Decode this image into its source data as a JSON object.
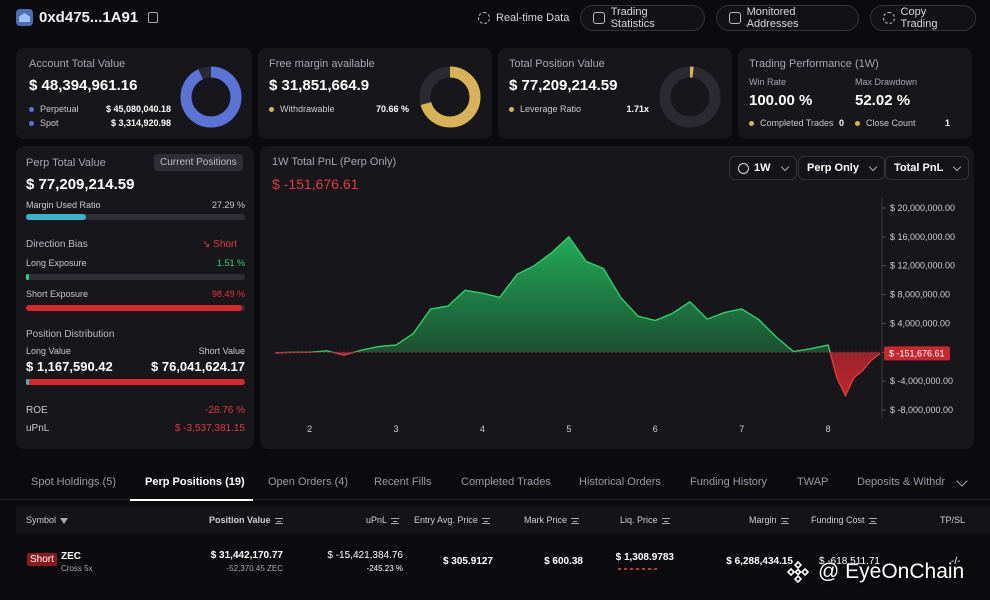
{
  "header": {
    "address": "0xd475...1A91",
    "nav": [
      "Real-time Data",
      "Trading Statistics",
      "Monitored Addresses",
      "Copy Trading"
    ]
  },
  "cards": {
    "account": {
      "title": "Account Total Value",
      "value": "$ 48,394,961.16",
      "rows": [
        {
          "label": "Perpetual",
          "value": "$ 45,080,040.18"
        },
        {
          "label": "Spot",
          "value": "$ 3,314,920.98"
        }
      ],
      "donut_fraction": 0.93,
      "color": "#5b72d6"
    },
    "margin": {
      "title": "Free margin available",
      "value": "$ 31,851,664.9",
      "row_label": "Withdrawable",
      "row_value": "70.66 %",
      "donut_fraction": 0.7066,
      "color": "#d8b257"
    },
    "position": {
      "title": "Total Position Value",
      "value": "$ 77,209,214.59",
      "row_label": "Leverage Ratio",
      "row_value": "1.71x",
      "donut_fraction": 0.02,
      "color": "#d8b257"
    },
    "performance": {
      "title": "Trading Performance (1W)",
      "win_label": "Win Rate",
      "win_value": "100.00 %",
      "dd_label": "Max Drawdown",
      "dd_value": "52.02 %",
      "ct_label": "Completed Trades",
      "ct_value": "0",
      "cc_label": "Close Count",
      "cc_value": "1"
    }
  },
  "perp": {
    "title": "Perp Total Value",
    "badge": "Current Positions",
    "value": "$ 77,209,214.59",
    "margin_label": "Margin Used Ratio",
    "margin_value": "27.29 %",
    "margin_fraction": 0.2729,
    "bias_label": "Direction Bias",
    "bias_value": "Short",
    "long_label": "Long Exposure",
    "long_value": "1.51 %",
    "long_fraction": 0.0151,
    "short_label": "Short Exposure",
    "short_value": "98.49 %",
    "short_fraction": 0.9849,
    "dist_label": "Position Distribution",
    "lv_label": "Long Value",
    "sv_label": "Short Value",
    "lv_value": "$ 1,167,590.42",
    "sv_value": "$ 76,041,624.17",
    "dist_fraction": 0.015,
    "roe_label": "ROE",
    "roe_value": "-28.76 %",
    "upnl_label": "uPnL",
    "upnl_value": "$ -3,537,381.15"
  },
  "pnl": {
    "title": "1W Total PnL (Perp Only)",
    "value": "$ -151,676.61",
    "dd1": "1W",
    "dd2": "Perp Only",
    "dd3": "Total PnL",
    "current_label": "$ -151,676.61"
  },
  "chart_data": {
    "type": "area",
    "title": "1W Total PnL (Perp Only)",
    "x": [
      1.6,
      1.8,
      2.0,
      2.2,
      2.4,
      2.6,
      2.8,
      3.0,
      3.2,
      3.4,
      3.6,
      3.8,
      4.0,
      4.2,
      4.4,
      4.6,
      4.8,
      5.0,
      5.2,
      5.4,
      5.6,
      5.8,
      6.0,
      6.2,
      6.4,
      6.6,
      6.8,
      7.0,
      7.2,
      7.4,
      7.6,
      7.8,
      8.0,
      8.1,
      8.2,
      8.3,
      8.4,
      8.5,
      8.6
    ],
    "y": [
      -100000,
      0,
      0,
      200000,
      -400000,
      300000,
      800000,
      1000000,
      2600000,
      6000000,
      6400000,
      8600000,
      8200000,
      7600000,
      10800000,
      12000000,
      13800000,
      16000000,
      12600000,
      11600000,
      7600000,
      5000000,
      4400000,
      5400000,
      7000000,
      4600000,
      5500000,
      6000000,
      4500000,
      2100000,
      100000,
      500000,
      1000000,
      -3500000,
      -6000000,
      -3500000,
      -2500000,
      -1100000,
      -151676
    ],
    "x_ticks": [
      "2",
      "3",
      "4",
      "5",
      "6",
      "7",
      "8"
    ],
    "x_tick_values": [
      2,
      3,
      4,
      5,
      6,
      7,
      8
    ],
    "y_ticks": [
      "$ 20,000,000.00",
      "$ 16,000,000.00",
      "$ 12,000,000.00",
      "$ 8,000,000.00",
      "$ 4,000,000.00",
      "0",
      "$ -4,000,000.00",
      "$ -8,000,000.00"
    ],
    "y_tick_values": [
      20000000,
      16000000,
      12000000,
      8000000,
      4000000,
      0,
      -4000000,
      -8000000
    ],
    "ylim": [
      -8000000,
      20000000
    ],
    "xlim": [
      1.6,
      8.6
    ],
    "colors": {
      "positive": "#23b25a",
      "negative": "#c62830"
    }
  },
  "tabs": [
    "Spot Holdings (5)",
    "Perp Positions (19)",
    "Open Orders (4)",
    "Recent Fills",
    "Completed Trades",
    "Historical Orders",
    "Funding History",
    "TWAP",
    "Deposits & Withdr"
  ],
  "table": {
    "headers": [
      "Symbol",
      "Position Value",
      "uPnL",
      "Entry Avg. Price",
      "Mark Price",
      "Liq. Price",
      "Margin",
      "Funding Cost",
      "TP/SL"
    ],
    "rows": [
      {
        "side": "Short",
        "symbol": "ZEC",
        "mode": "Cross 5x",
        "pos_value": "$ 31,442,170.77",
        "pos_size": "-52,370.45 ZEC",
        "upnl": "$ -15,421,384.76",
        "upnl_pct": "-245.23 %",
        "entry": "$ 305.9127",
        "mark": "$ 600.38",
        "liq": "$ 1,308.9783",
        "margin": "$ 6,288,434.15",
        "funding": "$ -618,511.71",
        "tpsl": "-/-"
      }
    ]
  },
  "watermark": "@ EyeOnChain"
}
